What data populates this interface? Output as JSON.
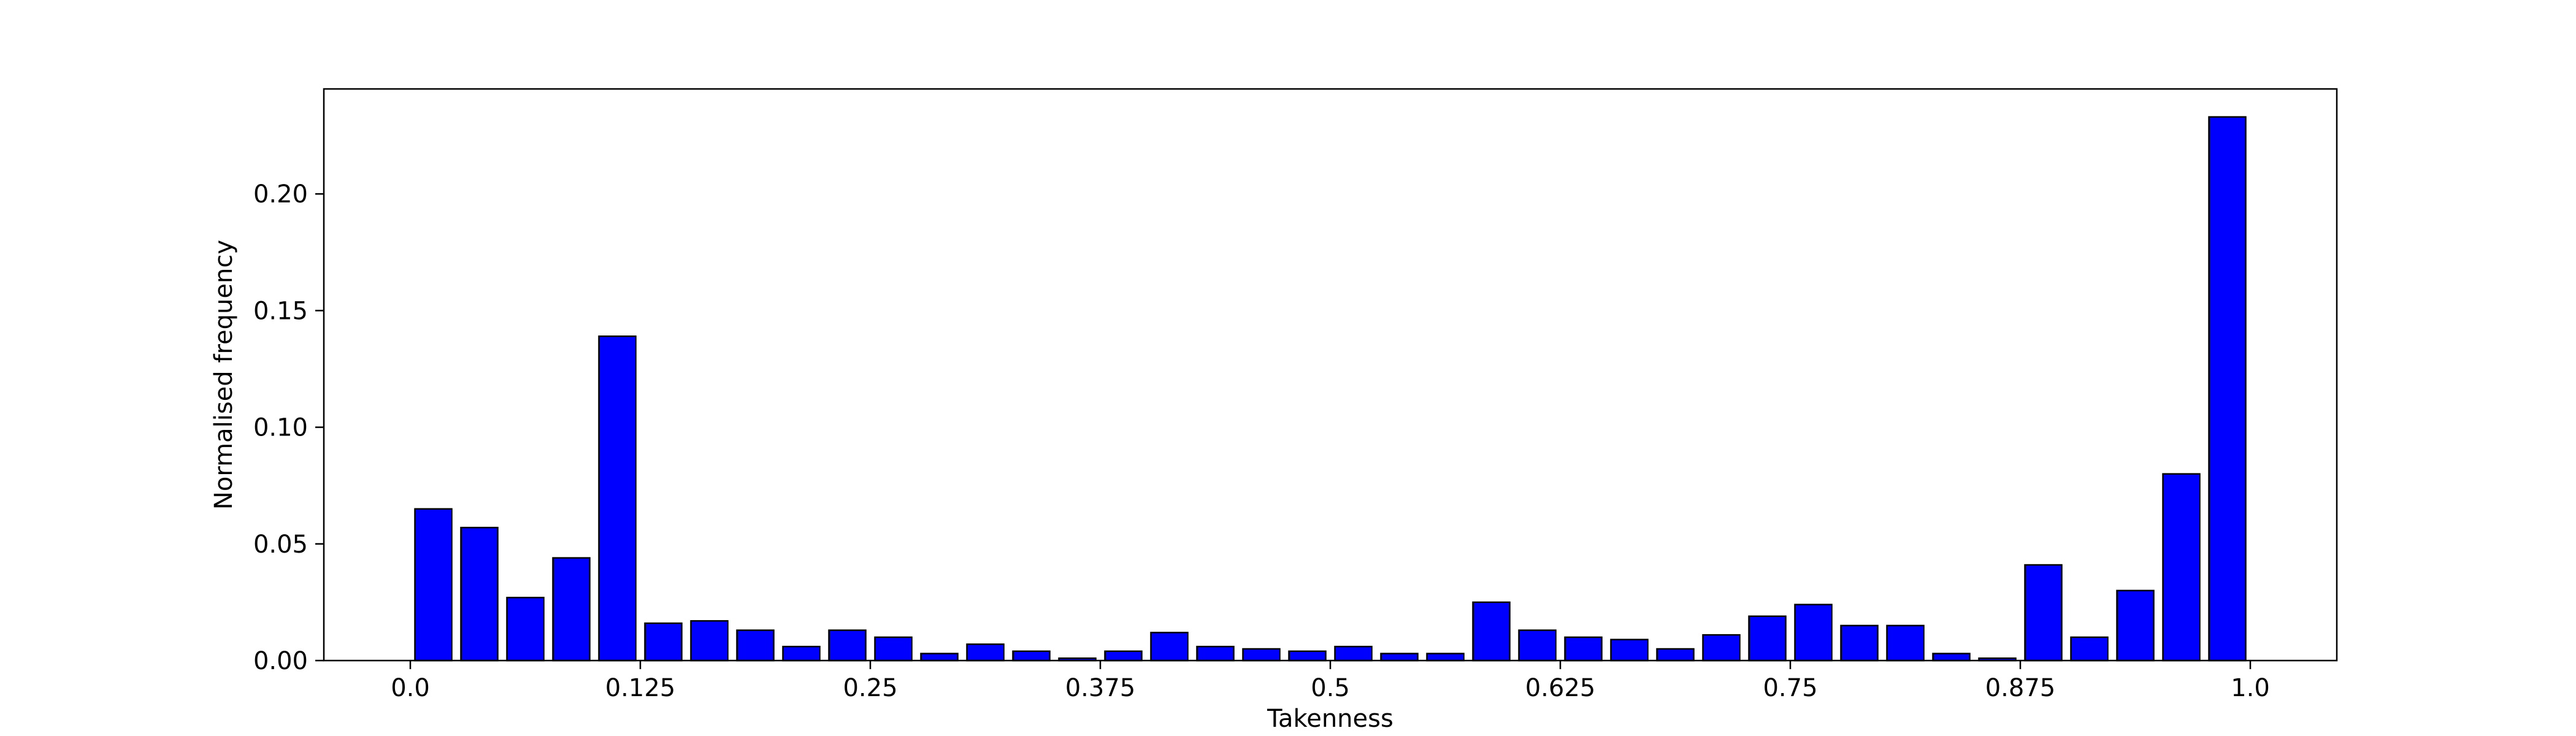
{
  "chart_data": {
    "type": "bar",
    "title": "",
    "xlabel": "Takenness",
    "ylabel": "Normalised frequency",
    "xlim": [
      -0.047,
      1.047
    ],
    "ylim": [
      0,
      0.245
    ],
    "xticks": [
      {
        "value": 0.0,
        "label": "0.0"
      },
      {
        "value": 0.125,
        "label": "0.125"
      },
      {
        "value": 0.25,
        "label": "0.25"
      },
      {
        "value": 0.375,
        "label": "0.375"
      },
      {
        "value": 0.5,
        "label": "0.5"
      },
      {
        "value": 0.625,
        "label": "0.625"
      },
      {
        "value": 0.75,
        "label": "0.75"
      },
      {
        "value": 0.875,
        "label": "0.875"
      },
      {
        "value": 1.0,
        "label": "1.0"
      }
    ],
    "yticks": [
      {
        "value": 0.0,
        "label": "0.00"
      },
      {
        "value": 0.05,
        "label": "0.05"
      },
      {
        "value": 0.1,
        "label": "0.10"
      },
      {
        "value": 0.15,
        "label": "0.15"
      },
      {
        "value": 0.2,
        "label": "0.20"
      }
    ],
    "grid": false,
    "bar_width": 0.02,
    "bar_color": "#0000ff",
    "edge_color": "#000000",
    "x": [
      0.0125,
      0.0375,
      0.0625,
      0.0875,
      0.1125,
      0.1375,
      0.1625,
      0.1875,
      0.2125,
      0.2375,
      0.2625,
      0.2875,
      0.3125,
      0.3375,
      0.3625,
      0.3875,
      0.4125,
      0.4375,
      0.4625,
      0.4875,
      0.5125,
      0.5375,
      0.5625,
      0.5875,
      0.6125,
      0.6375,
      0.6625,
      0.6875,
      0.7125,
      0.7375,
      0.7625,
      0.7875,
      0.8125,
      0.8375,
      0.8625,
      0.8875,
      0.9125,
      0.9375,
      0.9625,
      0.9875
    ],
    "values": [
      0.065,
      0.057,
      0.027,
      0.044,
      0.139,
      0.016,
      0.017,
      0.013,
      0.006,
      0.013,
      0.01,
      0.003,
      0.007,
      0.004,
      0.001,
      0.004,
      0.012,
      0.006,
      0.005,
      0.004,
      0.006,
      0.003,
      0.003,
      0.025,
      0.013,
      0.01,
      0.009,
      0.005,
      0.011,
      0.019,
      0.024,
      0.015,
      0.015,
      0.003,
      0.001,
      0.041,
      0.01,
      0.03,
      0.08,
      0.233
    ]
  }
}
